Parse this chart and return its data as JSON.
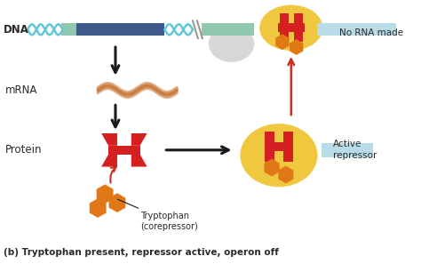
{
  "bg_color": "#ffffff",
  "title": "(b) Tryptophan present, repressor active, operon off",
  "title_fontsize": 7.5,
  "title_fontstyle": "bold",
  "colors": {
    "dna_helix": "#60c8d8",
    "dna_block1": "#3d5a8a",
    "dna_block2": "#90c8b0",
    "dna_block3": "#b8dce8",
    "red_protein": "#d42020",
    "orange_hexagon": "#e07818",
    "yellow_blob": "#f0c840",
    "gray_blob": "#c0c0c0",
    "mrna_color": "#c87838",
    "arrow_black": "#1a1a1a",
    "arrow_red": "#c83020",
    "text_color": "#2a2a2a"
  },
  "labels": {
    "dna": "DNA",
    "mrna": "mRNA",
    "protein": "Protein",
    "tryptophan": "Tryptophan\n(corepressor)",
    "no_rna": "No RNA made",
    "active_repressor": "Active\nrepressor"
  }
}
